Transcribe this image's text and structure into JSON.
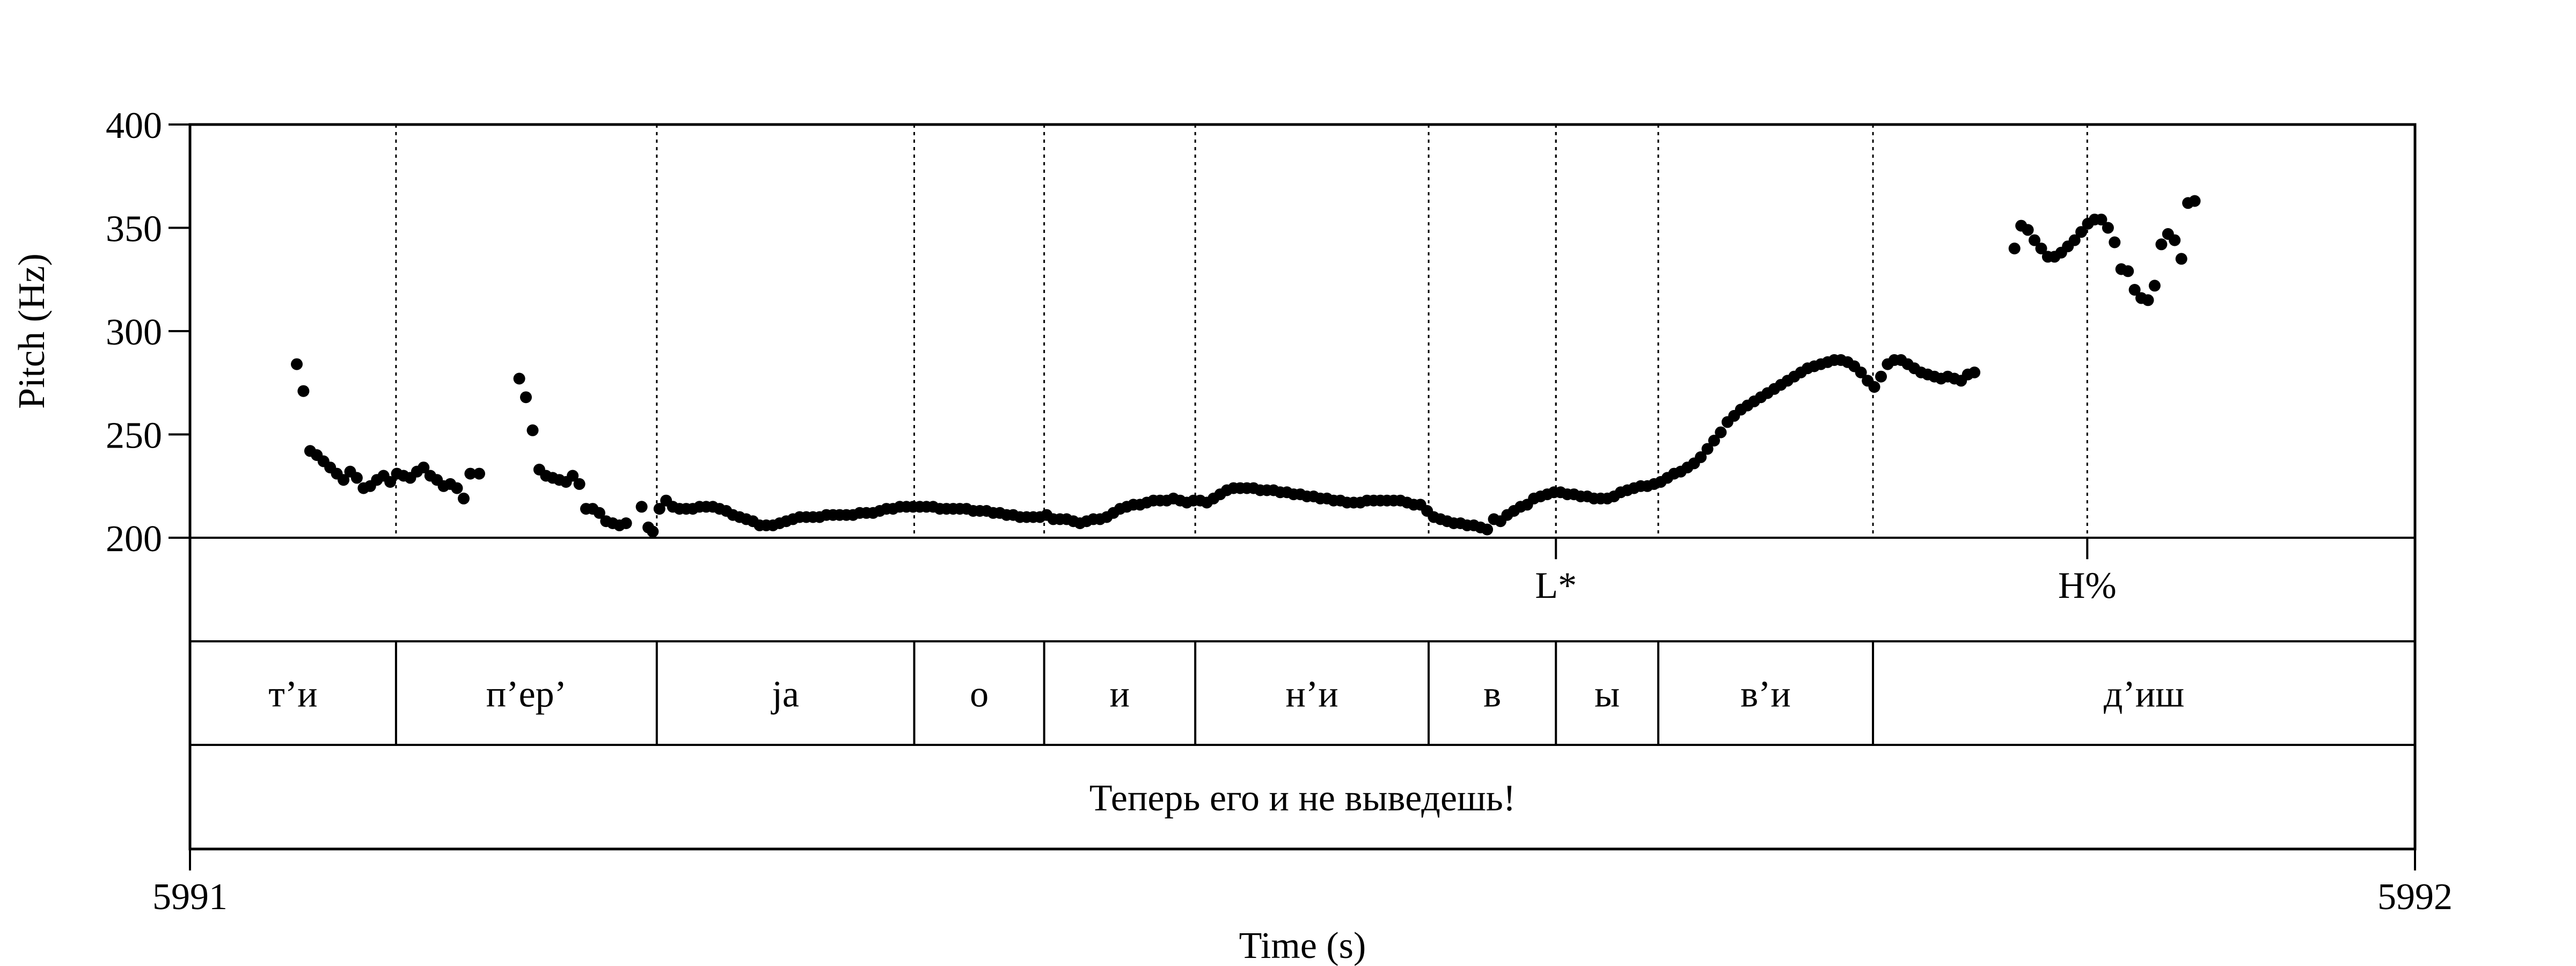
{
  "chart_data": {
    "type": "scatter",
    "title": "",
    "xlabel": "Time (s)",
    "ylabel": "Pitch (Hz)",
    "xlim": [
      5991,
      5992
    ],
    "ylim": [
      200,
      400
    ],
    "x_ticks": [
      "5991",
      "5992"
    ],
    "y_ticks": [
      {
        "value": 200,
        "label": "200"
      },
      {
        "value": 250,
        "label": "250"
      },
      {
        "value": 300,
        "label": "300"
      },
      {
        "value": 350,
        "label": "350"
      },
      {
        "value": 400,
        "label": "400"
      }
    ],
    "grid": false,
    "segment_boundaries_s": [
      5991.0926,
      5991.2098,
      5991.3255,
      5991.3839,
      5991.4518,
      5991.5567,
      5991.6139,
      5991.6599,
      5991.7564
    ],
    "tones": [
      {
        "label": "L*",
        "time": 5991.6139
      },
      {
        "label": "H%",
        "time": 5991.8527
      }
    ],
    "segments": [
      {
        "label": "т’и",
        "start": 5991.0,
        "end": 5991.0926
      },
      {
        "label": "п’ер’",
        "start": 5991.0926,
        "end": 5991.2098
      },
      {
        "label": "ja",
        "start": 5991.2098,
        "end": 5991.3255
      },
      {
        "label": "о",
        "start": 5991.3255,
        "end": 5991.3839
      },
      {
        "label": "и",
        "start": 5991.3839,
        "end": 5991.4518
      },
      {
        "label": "н’и",
        "start": 5991.4518,
        "end": 5991.5567
      },
      {
        "label": "в",
        "start": 5991.5567,
        "end": 5991.6139
      },
      {
        "label": "ы",
        "start": 5991.6139,
        "end": 5991.6599
      },
      {
        "label": "в’и",
        "start": 5991.6599,
        "end": 5991.7564
      },
      {
        "label": "д’иш",
        "start": 5991.7564,
        "end": 5992.0
      }
    ],
    "sentence": "Теперь его и не выведешь!",
    "series": [
      {
        "points": [
          [
            5991.048,
            284
          ],
          [
            5991.051,
            271
          ],
          [
            5991.054,
            242
          ],
          [
            5991.057,
            240
          ],
          [
            5991.06,
            237
          ],
          [
            5991.063,
            234
          ],
          [
            5991.066,
            231
          ],
          [
            5991.069,
            228
          ],
          [
            5991.072,
            232
          ],
          [
            5991.075,
            229
          ],
          [
            5991.078,
            224
          ],
          [
            5991.081,
            225
          ],
          [
            5991.084,
            228
          ],
          [
            5991.087,
            230
          ],
          [
            5991.09,
            227
          ],
          [
            5991.093,
            231
          ],
          [
            5991.096,
            230
          ],
          [
            5991.099,
            229
          ],
          [
            5991.102,
            232
          ],
          [
            5991.105,
            234
          ],
          [
            5991.108,
            230
          ],
          [
            5991.111,
            228
          ],
          [
            5991.114,
            225
          ],
          [
            5991.117,
            226
          ],
          [
            5991.12,
            224
          ],
          [
            5991.123,
            219
          ],
          [
            5991.126,
            231
          ],
          [
            5991.13,
            231
          ],
          [
            5991.148,
            277
          ],
          [
            5991.151,
            268
          ],
          [
            5991.154,
            252
          ],
          [
            5991.157,
            233
          ],
          [
            5991.16,
            230
          ],
          [
            5991.163,
            229
          ],
          [
            5991.166,
            228
          ],
          [
            5991.169,
            227
          ],
          [
            5991.172,
            230
          ],
          [
            5991.175,
            226
          ],
          [
            5991.178,
            214
          ],
          [
            5991.181,
            214
          ],
          [
            5991.184,
            212
          ],
          [
            5991.187,
            208
          ],
          [
            5991.19,
            207
          ],
          [
            5991.193,
            206
          ],
          [
            5991.196,
            207
          ],
          [
            5991.203,
            215
          ],
          [
            5991.206,
            205
          ],
          [
            5991.208,
            203
          ],
          [
            5991.211,
            214
          ],
          [
            5991.214,
            218
          ],
          [
            5991.217,
            215
          ],
          [
            5991.22,
            214
          ],
          [
            5991.223,
            214
          ],
          [
            5991.226,
            214
          ],
          [
            5991.229,
            215
          ],
          [
            5991.232,
            215
          ],
          [
            5991.235,
            215
          ],
          [
            5991.238,
            214
          ],
          [
            5991.241,
            213
          ],
          [
            5991.244,
            211
          ],
          [
            5991.247,
            210
          ],
          [
            5991.25,
            209
          ],
          [
            5991.253,
            208
          ],
          [
            5991.256,
            206
          ],
          [
            5991.259,
            206
          ],
          [
            5991.262,
            206
          ],
          [
            5991.265,
            207
          ],
          [
            5991.268,
            208
          ],
          [
            5991.271,
            209
          ],
          [
            5991.274,
            210
          ],
          [
            5991.277,
            210
          ],
          [
            5991.28,
            210
          ],
          [
            5991.283,
            210
          ],
          [
            5991.286,
            211
          ],
          [
            5991.289,
            211
          ],
          [
            5991.292,
            211
          ],
          [
            5991.295,
            211
          ],
          [
            5991.298,
            211
          ],
          [
            5991.301,
            212
          ],
          [
            5991.304,
            212
          ],
          [
            5991.307,
            212
          ],
          [
            5991.31,
            213
          ],
          [
            5991.313,
            214
          ],
          [
            5991.316,
            214
          ],
          [
            5991.319,
            215
          ],
          [
            5991.322,
            215
          ],
          [
            5991.325,
            215
          ],
          [
            5991.328,
            215
          ],
          [
            5991.331,
            215
          ],
          [
            5991.334,
            215
          ],
          [
            5991.337,
            214
          ],
          [
            5991.34,
            214
          ],
          [
            5991.343,
            214
          ],
          [
            5991.346,
            214
          ],
          [
            5991.349,
            214
          ],
          [
            5991.352,
            213
          ],
          [
            5991.355,
            213
          ],
          [
            5991.358,
            213
          ],
          [
            5991.361,
            212
          ],
          [
            5991.364,
            212
          ],
          [
            5991.367,
            211
          ],
          [
            5991.37,
            211
          ],
          [
            5991.373,
            210
          ],
          [
            5991.376,
            210
          ],
          [
            5991.379,
            210
          ],
          [
            5991.382,
            210
          ],
          [
            5991.385,
            211
          ],
          [
            5991.388,
            209
          ],
          [
            5991.391,
            209
          ],
          [
            5991.394,
            209
          ],
          [
            5991.397,
            208
          ],
          [
            5991.4,
            207
          ],
          [
            5991.403,
            208
          ],
          [
            5991.406,
            209
          ],
          [
            5991.409,
            209
          ],
          [
            5991.412,
            210
          ],
          [
            5991.415,
            212
          ],
          [
            5991.418,
            214
          ],
          [
            5991.421,
            215
          ],
          [
            5991.424,
            216
          ],
          [
            5991.427,
            216
          ],
          [
            5991.43,
            217
          ],
          [
            5991.433,
            218
          ],
          [
            5991.436,
            218
          ],
          [
            5991.439,
            218
          ],
          [
            5991.442,
            219
          ],
          [
            5991.445,
            218
          ],
          [
            5991.448,
            217
          ],
          [
            5991.451,
            218
          ],
          [
            5991.454,
            218
          ],
          [
            5991.457,
            217
          ],
          [
            5991.46,
            219
          ],
          [
            5991.463,
            221
          ],
          [
            5991.466,
            223
          ],
          [
            5991.469,
            224
          ],
          [
            5991.472,
            224
          ],
          [
            5991.475,
            224
          ],
          [
            5991.478,
            224
          ],
          [
            5991.481,
            223
          ],
          [
            5991.484,
            223
          ],
          [
            5991.487,
            223
          ],
          [
            5991.49,
            222
          ],
          [
            5991.493,
            222
          ],
          [
            5991.496,
            221
          ],
          [
            5991.499,
            221
          ],
          [
            5991.502,
            220
          ],
          [
            5991.505,
            220
          ],
          [
            5991.508,
            219
          ],
          [
            5991.511,
            219
          ],
          [
            5991.514,
            218
          ],
          [
            5991.517,
            218
          ],
          [
            5991.52,
            217
          ],
          [
            5991.523,
            217
          ],
          [
            5991.526,
            217
          ],
          [
            5991.529,
            218
          ],
          [
            5991.532,
            218
          ],
          [
            5991.535,
            218
          ],
          [
            5991.538,
            218
          ],
          [
            5991.541,
            218
          ],
          [
            5991.544,
            218
          ],
          [
            5991.547,
            217
          ],
          [
            5991.55,
            216
          ],
          [
            5991.553,
            216
          ],
          [
            5991.556,
            213
          ],
          [
            5991.559,
            210
          ],
          [
            5991.562,
            209
          ],
          [
            5991.565,
            208
          ],
          [
            5991.568,
            207
          ],
          [
            5991.571,
            207
          ],
          [
            5991.574,
            206
          ],
          [
            5991.577,
            206
          ],
          [
            5991.58,
            205
          ],
          [
            5991.583,
            204
          ],
          [
            5991.586,
            209
          ],
          [
            5991.589,
            208
          ],
          [
            5991.592,
            211
          ],
          [
            5991.595,
            213
          ],
          [
            5991.598,
            215
          ],
          [
            5991.601,
            216
          ],
          [
            5991.604,
            219
          ],
          [
            5991.607,
            220
          ],
          [
            5991.61,
            221
          ],
          [
            5991.613,
            222
          ],
          [
            5991.616,
            222
          ],
          [
            5991.619,
            221
          ],
          [
            5991.622,
            221
          ],
          [
            5991.625,
            220
          ],
          [
            5991.628,
            220
          ],
          [
            5991.631,
            219
          ],
          [
            5991.634,
            219
          ],
          [
            5991.637,
            219
          ],
          [
            5991.64,
            220
          ],
          [
            5991.643,
            222
          ],
          [
            5991.646,
            223
          ],
          [
            5991.649,
            224
          ],
          [
            5991.652,
            225
          ],
          [
            5991.655,
            225
          ],
          [
            5991.658,
            226
          ],
          [
            5991.661,
            227
          ],
          [
            5991.664,
            229
          ],
          [
            5991.667,
            231
          ],
          [
            5991.67,
            232
          ],
          [
            5991.673,
            234
          ],
          [
            5991.676,
            236
          ],
          [
            5991.679,
            239
          ],
          [
            5991.682,
            243
          ],
          [
            5991.685,
            247
          ],
          [
            5991.688,
            251
          ],
          [
            5991.691,
            256
          ],
          [
            5991.694,
            259
          ],
          [
            5991.697,
            262
          ],
          [
            5991.7,
            264
          ],
          [
            5991.703,
            266
          ],
          [
            5991.706,
            268
          ],
          [
            5991.709,
            270
          ],
          [
            5991.712,
            272
          ],
          [
            5991.715,
            274
          ],
          [
            5991.718,
            276
          ],
          [
            5991.721,
            278
          ],
          [
            5991.724,
            280
          ],
          [
            5991.727,
            282
          ],
          [
            5991.73,
            283
          ],
          [
            5991.733,
            284
          ],
          [
            5991.736,
            285
          ],
          [
            5991.739,
            286
          ],
          [
            5991.742,
            286
          ],
          [
            5991.745,
            285
          ],
          [
            5991.748,
            283
          ],
          [
            5991.751,
            280
          ],
          [
            5991.754,
            276
          ],
          [
            5991.757,
            273
          ],
          [
            5991.76,
            278
          ],
          [
            5991.763,
            284
          ],
          [
            5991.766,
            286
          ],
          [
            5991.769,
            286
          ],
          [
            5991.772,
            284
          ],
          [
            5991.775,
            282
          ],
          [
            5991.778,
            280
          ],
          [
            5991.781,
            279
          ],
          [
            5991.784,
            278
          ],
          [
            5991.787,
            277
          ],
          [
            5991.79,
            278
          ],
          [
            5991.793,
            277
          ],
          [
            5991.796,
            276
          ],
          [
            5991.799,
            279
          ],
          [
            5991.802,
            280
          ],
          [
            5991.82,
            340
          ],
          [
            5991.823,
            351
          ],
          [
            5991.826,
            349
          ],
          [
            5991.829,
            344
          ],
          [
            5991.832,
            340
          ],
          [
            5991.835,
            336
          ],
          [
            5991.838,
            336
          ],
          [
            5991.841,
            338
          ],
          [
            5991.844,
            341
          ],
          [
            5991.847,
            344
          ],
          [
            5991.85,
            348
          ],
          [
            5991.853,
            352
          ],
          [
            5991.856,
            354
          ],
          [
            5991.859,
            354
          ],
          [
            5991.862,
            350
          ],
          [
            5991.865,
            343
          ],
          [
            5991.868,
            330
          ],
          [
            5991.871,
            329
          ],
          [
            5991.874,
            320
          ],
          [
            5991.877,
            316
          ],
          [
            5991.88,
            315
          ],
          [
            5991.883,
            322
          ],
          [
            5991.886,
            342
          ],
          [
            5991.889,
            347
          ],
          [
            5991.892,
            344
          ],
          [
            5991.895,
            335
          ],
          [
            5991.898,
            362
          ],
          [
            5991.901,
            363
          ]
        ]
      }
    ]
  }
}
